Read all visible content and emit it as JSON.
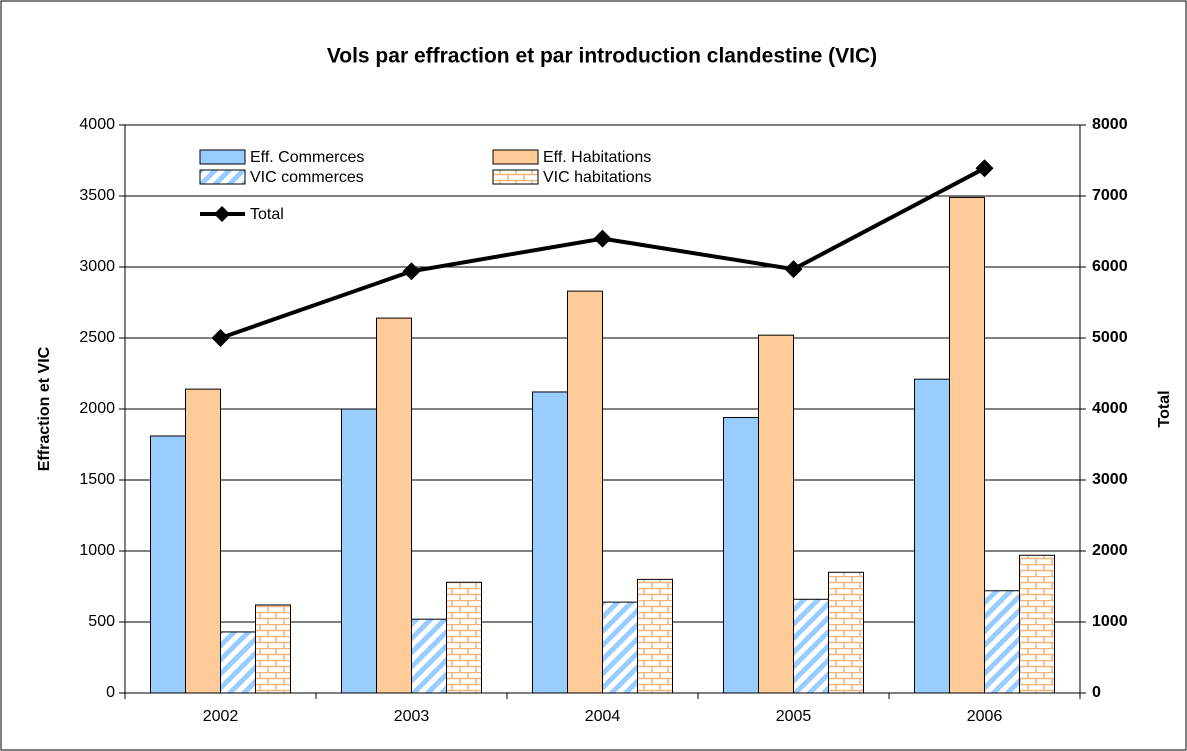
{
  "chart_data": {
    "type": "bar",
    "title": "Vols par effraction et par introduction clandestine (VIC)",
    "ylabel": "Effraction et VIC",
    "y2label": "Total",
    "categories": [
      "2002",
      "2003",
      "2004",
      "2005",
      "2006"
    ],
    "series": [
      {
        "name": "Eff. Commerces",
        "color": "#99ccff",
        "values": [
          1810,
          2000,
          2120,
          1940,
          2210
        ]
      },
      {
        "name": "Eff. Habitations",
        "color": "#ffcc99",
        "values": [
          2140,
          2640,
          2830,
          2520,
          3490
        ]
      },
      {
        "name": "VIC commerces",
        "color": "#99ccff",
        "pattern": "diagonal",
        "values": [
          430,
          520,
          640,
          660,
          720
        ]
      },
      {
        "name": "VIC habitations",
        "color": "#ffcc99",
        "pattern": "brick",
        "values": [
          620,
          780,
          800,
          850,
          970
        ]
      },
      {
        "name": "Total",
        "type": "line",
        "axis": "y2",
        "color": "#000000",
        "marker": "diamond",
        "values": [
          5000,
          5940,
          6400,
          5970,
          7390
        ]
      }
    ],
    "ylim": [
      0,
      4000
    ],
    "yticks": [
      0,
      500,
      1000,
      1500,
      2000,
      2500,
      3000,
      3500,
      4000
    ],
    "y2lim": [
      0,
      8000
    ],
    "y2ticks": [
      0,
      1000,
      2000,
      3000,
      4000,
      5000,
      6000,
      7000,
      8000
    ],
    "grid": true
  }
}
